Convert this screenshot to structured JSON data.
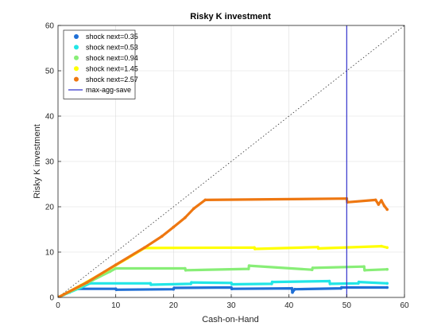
{
  "chart_data": {
    "type": "scatter",
    "title": "Risky K investment",
    "xlabel": "Cash-on-Hand",
    "ylabel": "Risky K investment",
    "xlim": [
      0,
      60
    ],
    "ylim": [
      0,
      60
    ],
    "xticks": [
      0,
      10,
      20,
      30,
      40,
      50,
      60
    ],
    "yticks": [
      0,
      10,
      20,
      30,
      40,
      50,
      60
    ],
    "grid": true,
    "legend_position": "top-left",
    "reference_line": {
      "style": "dotted",
      "color": "#333333",
      "x": [
        0,
        60
      ],
      "y": [
        0,
        60
      ]
    },
    "vertical_line": {
      "name": "max-agg-save",
      "x": 50,
      "color": "#3333cc"
    },
    "series": [
      {
        "name": "shock next=0.35",
        "color": "#1f6fd6",
        "x": [
          0,
          1,
          2,
          3,
          3.5,
          10,
          10.1,
          20,
          20.1,
          30,
          30.1,
          40.5,
          40.6,
          41,
          49,
          49.1,
          57
        ],
        "y": [
          0,
          0.6,
          1.2,
          1.8,
          1.9,
          1.9,
          1.7,
          1.8,
          2.1,
          2.2,
          1.9,
          2.0,
          1.1,
          1.8,
          2.0,
          2.2,
          2.2
        ]
      },
      {
        "name": "shock next=0.53",
        "color": "#22e6e6",
        "x": [
          0,
          2,
          4,
          5.5,
          16,
          16.1,
          23,
          23.1,
          30,
          30.1,
          37,
          37.1,
          47,
          47.1,
          52,
          52.1,
          57
        ],
        "y": [
          0,
          1.1,
          2.2,
          3.1,
          3.1,
          2.8,
          3.0,
          3.3,
          3.2,
          2.9,
          3.0,
          3.4,
          3.6,
          3.0,
          3.1,
          3.4,
          3.1
        ]
      },
      {
        "name": "shock next=0.94",
        "color": "#88ee77",
        "x": [
          0,
          3,
          6,
          9,
          10,
          22,
          22.1,
          33,
          33.1,
          44,
          44.1,
          53,
          53.1,
          57
        ],
        "y": [
          0,
          1.8,
          3.8,
          5.7,
          6.4,
          6.4,
          6.0,
          6.3,
          7.0,
          6.1,
          6.5,
          6.8,
          6.0,
          6.2
        ]
      },
      {
        "name": "shock next=1.45",
        "color": "#ffff00",
        "x": [
          0,
          4,
          8,
          12,
          15,
          34,
          34.1,
          45,
          45.1,
          56,
          57
        ],
        "y": [
          0,
          2.7,
          5.6,
          8.6,
          10.9,
          11.0,
          10.7,
          11.1,
          10.8,
          11.3,
          11.0
        ]
      },
      {
        "name": "shock next=2.57",
        "color": "#ee7711",
        "x": [
          0,
          5,
          10,
          15,
          18,
          20,
          22,
          23.5,
          25.5,
          50,
          50.1,
          55,
          55.5,
          56,
          56.5,
          57
        ],
        "y": [
          0,
          3.3,
          7.2,
          11.0,
          13.5,
          15.5,
          17.6,
          19.6,
          21.5,
          21.8,
          21.0,
          21.5,
          20.5,
          21.4,
          20.2,
          19.4
        ]
      }
    ]
  }
}
